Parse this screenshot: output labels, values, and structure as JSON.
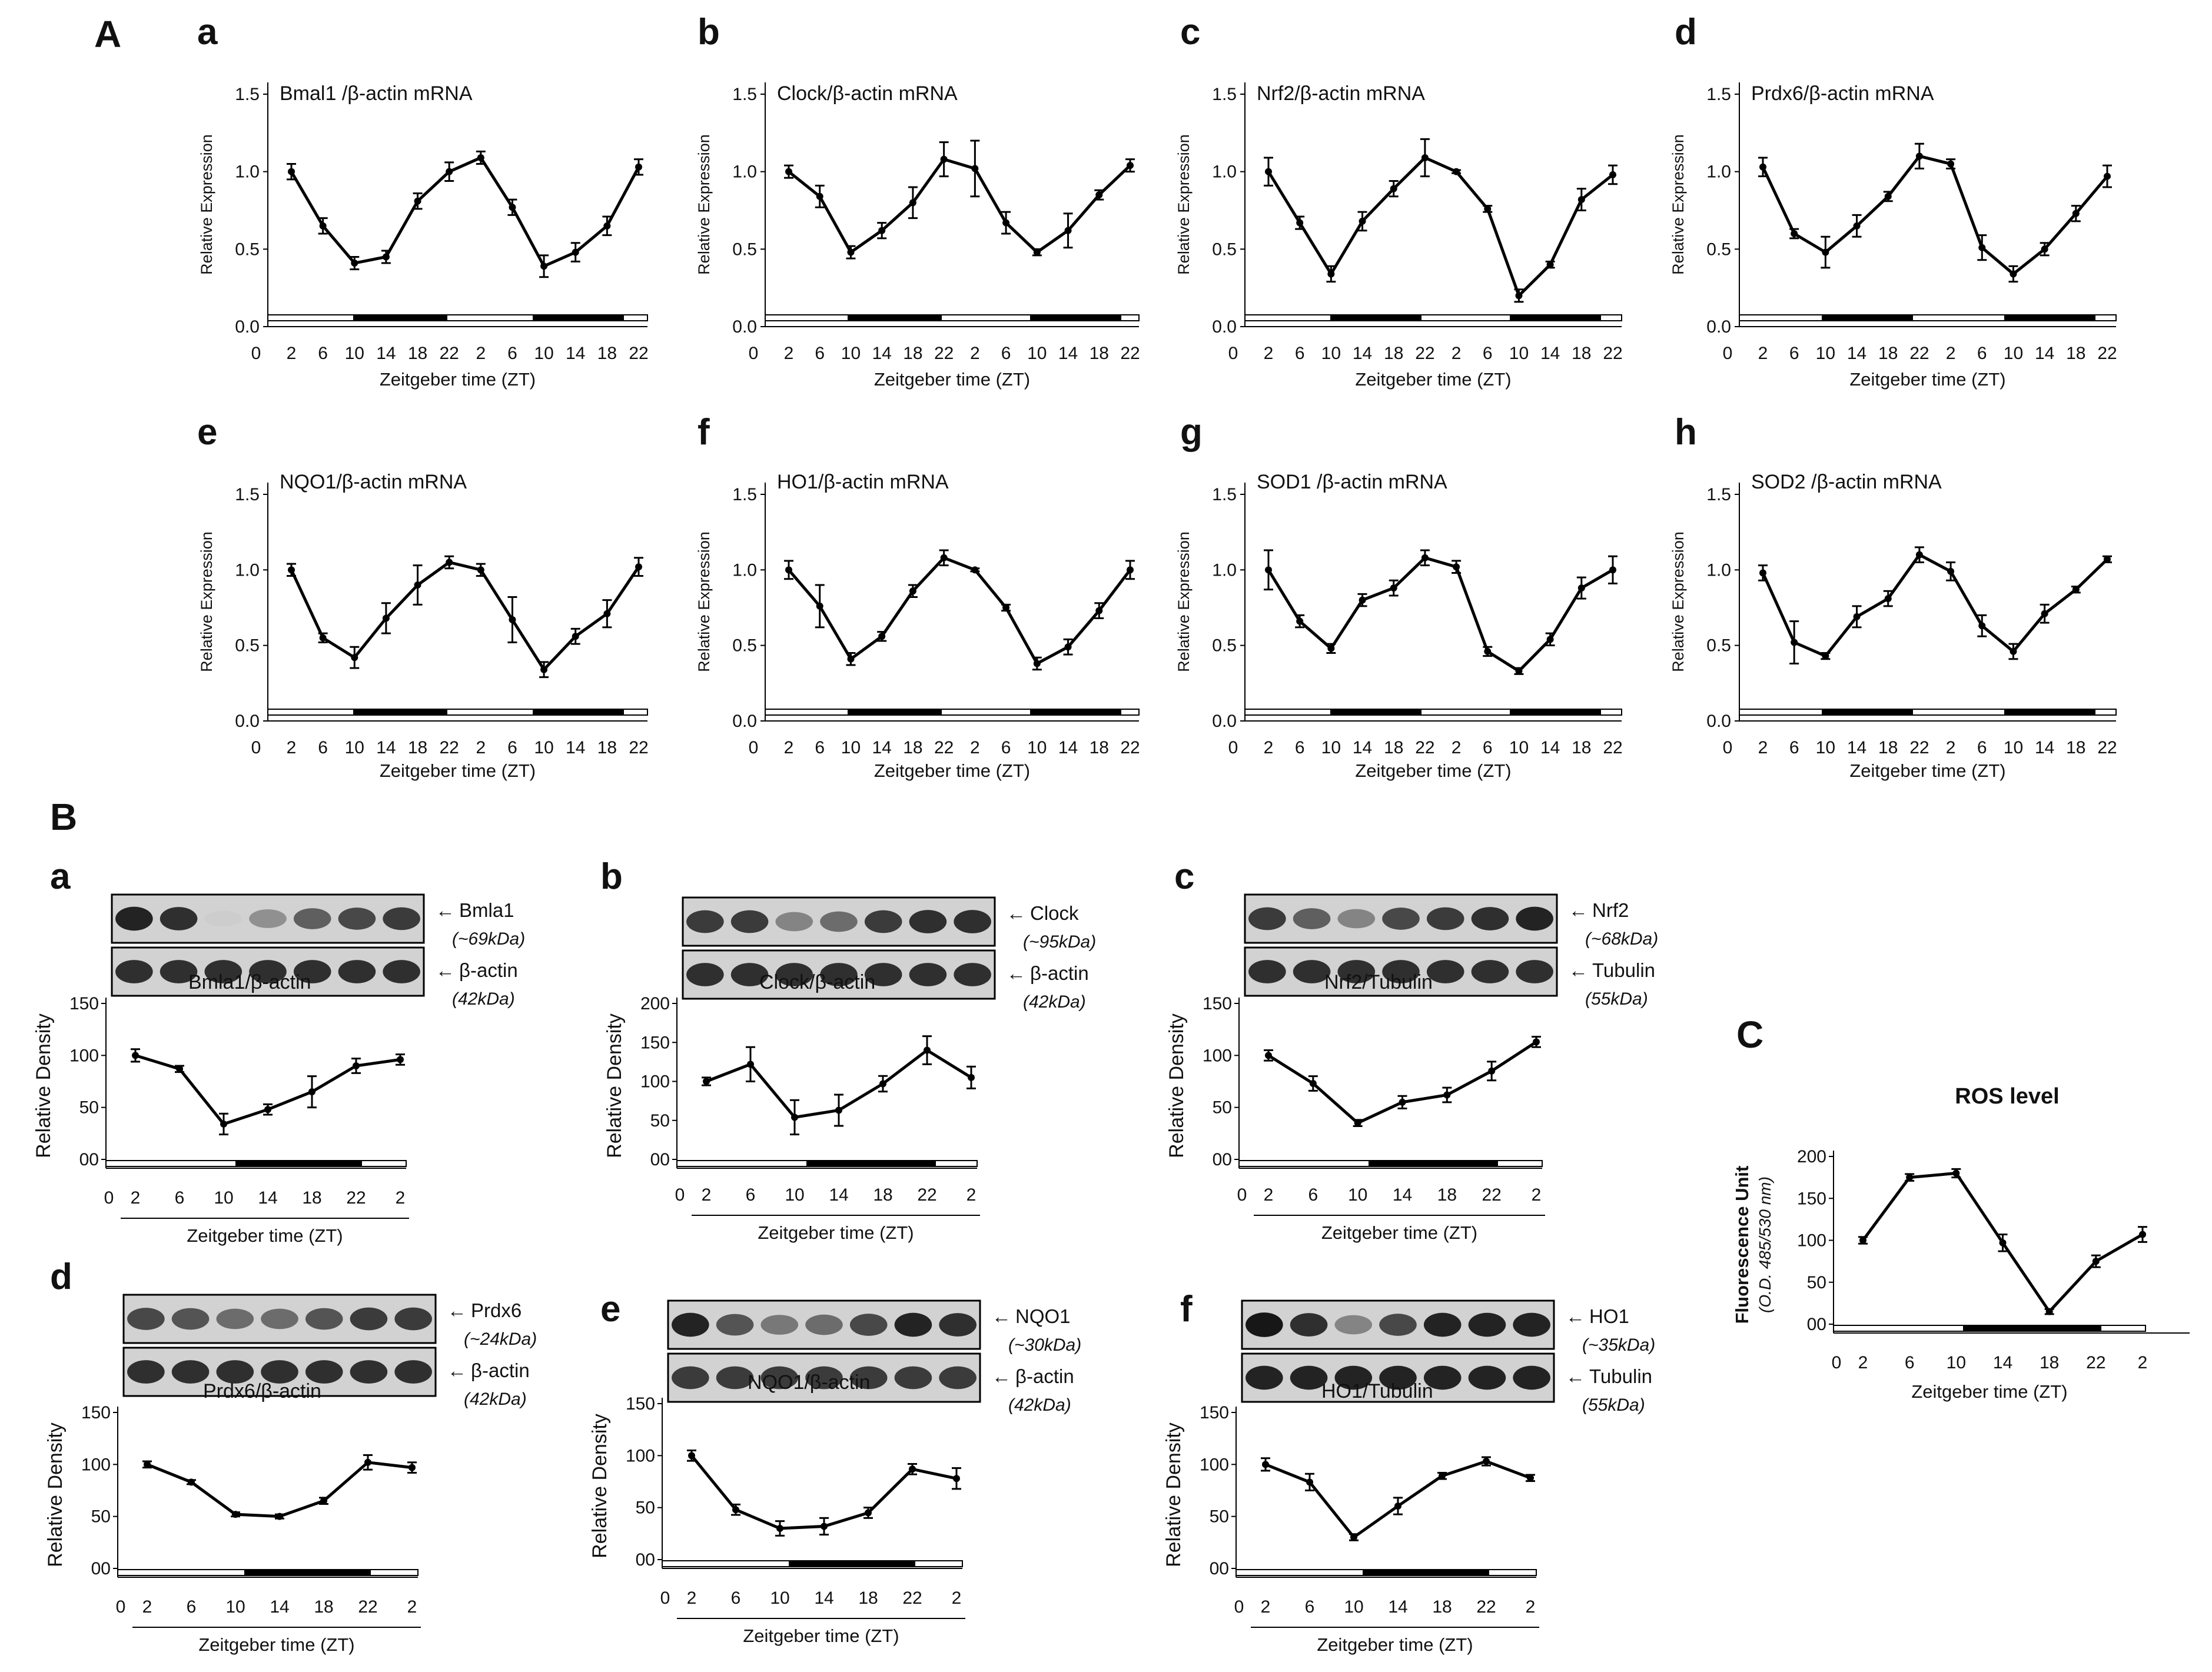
{
  "sections": [
    {
      "id": "A",
      "label": "A"
    },
    {
      "id": "B",
      "label": "B"
    },
    {
      "id": "C",
      "label": "C"
    }
  ],
  "chart_data": [
    {
      "id": "A-a",
      "panel": "a",
      "type": "line",
      "title": "Bmal1 /β-actin mRNA",
      "ylabel": "Relative  Expression",
      "xlabel": "Zeitgeber  time (ZT)",
      "x": [
        2,
        6,
        10,
        14,
        18,
        22,
        2,
        6,
        10,
        14,
        18,
        22
      ],
      "xticks": [
        "0",
        "2",
        "6",
        "10",
        "14",
        "18",
        "22",
        "2",
        "6",
        "10",
        "14",
        "18",
        "22"
      ],
      "yticks": [
        "0.0",
        "0.5",
        "1.0",
        "1.5"
      ],
      "ylim": [
        0,
        1.5
      ],
      "values": [
        1.0,
        0.65,
        0.41,
        0.45,
        0.81,
        1.0,
        1.09,
        0.77,
        0.39,
        0.48,
        0.65,
        1.03
      ],
      "errors": [
        0.05,
        0.05,
        0.04,
        0.04,
        0.05,
        0.06,
        0.04,
        0.05,
        0.07,
        0.06,
        0.06,
        0.05
      ],
      "light_dark": "white ZT0-10, black ZT10-22, white ZT22-10, black ZT10-22"
    },
    {
      "id": "A-b",
      "panel": "b",
      "type": "line",
      "title": "Clock/β-actin mRNA",
      "ylabel": "Relative  Expression",
      "xlabel": "Zeitgeber  time (ZT)",
      "x": [
        2,
        6,
        10,
        14,
        18,
        22,
        2,
        6,
        10,
        14,
        18,
        22
      ],
      "xticks": [
        "0",
        "2",
        "6",
        "10",
        "14",
        "18",
        "22",
        "2",
        "6",
        "10",
        "14",
        "18",
        "22"
      ],
      "yticks": [
        "0.0",
        "0.5",
        "1.0",
        "1.5"
      ],
      "ylim": [
        0,
        1.5
      ],
      "values": [
        1.0,
        0.84,
        0.48,
        0.62,
        0.8,
        1.08,
        1.02,
        0.67,
        0.48,
        0.62,
        0.85,
        1.04
      ],
      "errors": [
        0.04,
        0.07,
        0.04,
        0.05,
        0.1,
        0.11,
        0.18,
        0.07,
        0.02,
        0.11,
        0.03,
        0.04
      ],
      "light_dark": "white ZT0-10, black ZT10-22, white ZT22-10, black ZT10-22"
    },
    {
      "id": "A-c",
      "panel": "c",
      "type": "line",
      "title": "Nrf2/β-actin mRNA",
      "ylabel": "Relative  Expression",
      "xlabel": "Zeitgeber  time (ZT)",
      "x": [
        2,
        6,
        10,
        14,
        18,
        22,
        2,
        6,
        10,
        14,
        18,
        22
      ],
      "xticks": [
        "0",
        "2",
        "6",
        "10",
        "14",
        "18",
        "22",
        "2",
        "6",
        "10",
        "14",
        "18",
        "22"
      ],
      "yticks": [
        "0.0",
        "0.5",
        "1.0",
        "1.5"
      ],
      "ylim": [
        0,
        1.5
      ],
      "values": [
        1.0,
        0.67,
        0.34,
        0.68,
        0.89,
        1.09,
        1.0,
        0.76,
        0.2,
        0.4,
        0.82,
        0.98
      ],
      "errors": [
        0.09,
        0.04,
        0.05,
        0.06,
        0.05,
        0.12,
        0.01,
        0.02,
        0.04,
        0.02,
        0.07,
        0.06
      ],
      "light_dark": "white ZT0-10, black ZT10-22, white ZT22-10, black ZT10-22"
    },
    {
      "id": "A-d",
      "panel": "d",
      "type": "line",
      "title": "Prdx6/β-actin mRNA",
      "ylabel": "Relative  Expression",
      "xlabel": "Zeitgeber  time (ZT)",
      "x": [
        2,
        6,
        10,
        14,
        18,
        22,
        2,
        6,
        10,
        14,
        18,
        22
      ],
      "xticks": [
        "0",
        "2",
        "6",
        "10",
        "14",
        "18",
        "22",
        "2",
        "6",
        "10",
        "14",
        "18",
        "22"
      ],
      "yticks": [
        "0.0",
        "0.5",
        "1.0",
        "1.5"
      ],
      "ylim": [
        0,
        1.5
      ],
      "values": [
        1.03,
        0.6,
        0.48,
        0.65,
        0.84,
        1.1,
        1.05,
        0.51,
        0.34,
        0.5,
        0.73,
        0.97
      ],
      "errors": [
        0.06,
        0.03,
        0.1,
        0.07,
        0.03,
        0.08,
        0.03,
        0.08,
        0.05,
        0.04,
        0.05,
        0.07
      ],
      "light_dark": "white ZT0-10, black ZT10-22, white ZT22-10, black ZT10-22"
    },
    {
      "id": "A-e",
      "panel": "e",
      "type": "line",
      "title": "NQO1/β-actin mRNA",
      "ylabel": "Relative  Expression",
      "xlabel": "Zeitgeber  time (ZT)",
      "x": [
        2,
        6,
        10,
        14,
        18,
        22,
        2,
        6,
        10,
        14,
        18,
        22
      ],
      "xticks": [
        "0",
        "2",
        "6",
        "10",
        "14",
        "18",
        "22",
        "2",
        "6",
        "10",
        "14",
        "18",
        "22"
      ],
      "yticks": [
        "0.0",
        "0.5",
        "1.0",
        "1.5"
      ],
      "ylim": [
        0,
        1.5
      ],
      "values": [
        1.0,
        0.55,
        0.42,
        0.68,
        0.9,
        1.05,
        1.0,
        0.67,
        0.34,
        0.56,
        0.71,
        1.02
      ],
      "errors": [
        0.04,
        0.03,
        0.07,
        0.1,
        0.13,
        0.04,
        0.04,
        0.15,
        0.05,
        0.05,
        0.09,
        0.06
      ],
      "light_dark": "white ZT0-10, black ZT10-22, white ZT22-10, black ZT10-22"
    },
    {
      "id": "A-f",
      "panel": "f",
      "type": "line",
      "title": "HO1/β-actin mRNA",
      "ylabel": "Relative  Expression",
      "xlabel": "Zeitgeber  time (ZT)",
      "x": [
        2,
        6,
        10,
        14,
        18,
        22,
        2,
        6,
        10,
        14,
        18,
        22
      ],
      "xticks": [
        "0",
        "2",
        "6",
        "10",
        "14",
        "18",
        "22",
        "2",
        "6",
        "10",
        "14",
        "18",
        "22"
      ],
      "yticks": [
        "0.0",
        "0.5",
        "1.0",
        "1.5"
      ],
      "ylim": [
        0,
        1.5
      ],
      "values": [
        1.0,
        0.76,
        0.41,
        0.56,
        0.86,
        1.08,
        1.0,
        0.75,
        0.38,
        0.49,
        0.73,
        1.0
      ],
      "errors": [
        0.06,
        0.14,
        0.04,
        0.03,
        0.04,
        0.05,
        0.01,
        0.02,
        0.04,
        0.05,
        0.05,
        0.06
      ],
      "light_dark": "white ZT0-10, black ZT10-22, white ZT22-10, black ZT10-22"
    },
    {
      "id": "A-g",
      "panel": "g",
      "type": "line",
      "title": "SOD1 /β-actin mRNA",
      "ylabel": "Relative  Expression",
      "xlabel": "Zeitgeber  time (ZT)",
      "x": [
        2,
        6,
        10,
        14,
        18,
        22,
        2,
        6,
        10,
        14,
        18,
        22
      ],
      "xticks": [
        "0",
        "2",
        "6",
        "10",
        "14",
        "18",
        "22",
        "2",
        "6",
        "10",
        "14",
        "18",
        "22"
      ],
      "yticks": [
        "0.0",
        "0.5",
        "1.0",
        "1.5"
      ],
      "ylim": [
        0,
        1.5
      ],
      "values": [
        1.0,
        0.66,
        0.48,
        0.8,
        0.88,
        1.08,
        1.02,
        0.46,
        0.33,
        0.54,
        0.88,
        1.0
      ],
      "errors": [
        0.13,
        0.04,
        0.03,
        0.04,
        0.05,
        0.05,
        0.04,
        0.03,
        0.02,
        0.04,
        0.07,
        0.09
      ],
      "light_dark": "white ZT0-10, black ZT10-22, white ZT22-10, black ZT10-22"
    },
    {
      "id": "A-h",
      "panel": "h",
      "type": "line",
      "title": "SOD2 /β-actin mRNA",
      "ylabel": "Relative  Expression",
      "xlabel": "Zeitgeber  time (ZT)",
      "x": [
        2,
        6,
        10,
        14,
        18,
        22,
        2,
        6,
        10,
        14,
        18,
        22
      ],
      "xticks": [
        "0",
        "2",
        "6",
        "10",
        "14",
        "18",
        "22",
        "2",
        "6",
        "10",
        "14",
        "18",
        "22"
      ],
      "yticks": [
        "0.0",
        "0.5",
        "1.0",
        "1.5"
      ],
      "ylim": [
        0,
        1.5
      ],
      "values": [
        0.98,
        0.52,
        0.43,
        0.69,
        0.81,
        1.1,
        0.99,
        0.63,
        0.46,
        0.71,
        0.87,
        1.07
      ],
      "errors": [
        0.05,
        0.14,
        0.02,
        0.07,
        0.05,
        0.05,
        0.06,
        0.07,
        0.05,
        0.06,
        0.02,
        0.02
      ],
      "light_dark": "white ZT0-10, black ZT10-22, white ZT22-10, black ZT10-22"
    },
    {
      "id": "B-a",
      "panel": "a",
      "type": "line",
      "title": "Bmla1/β-actin",
      "ylabel": "Relative Density",
      "xlabel": "Zeitgeber  time (ZT)",
      "x": [
        2,
        6,
        10,
        14,
        18,
        22,
        2
      ],
      "xticks": [
        "0",
        "2",
        "6",
        "10",
        "14",
        "18",
        "22",
        "2"
      ],
      "yticks": [
        "00",
        "50",
        "100",
        "150"
      ],
      "ylim": [
        0,
        150
      ],
      "values": [
        100,
        87,
        34,
        48,
        65,
        90,
        96
      ],
      "errors": [
        6,
        3,
        10,
        5,
        15,
        7,
        5
      ],
      "blot": {
        "target": "Bmla1",
        "target_kda": "(~69kDa)",
        "control": "β-actin",
        "control_kda": "(42kDa)",
        "target_intensity": [
          0.9,
          0.85,
          0.2,
          0.45,
          0.65,
          0.75,
          0.8
        ],
        "control_intensity": [
          0.85,
          0.85,
          0.85,
          0.85,
          0.85,
          0.85,
          0.85
        ]
      }
    },
    {
      "id": "B-b",
      "panel": "b",
      "type": "line",
      "title": "Clock/β-actin",
      "ylabel": "Relative Density",
      "xlabel": "Zeitgeber  time (ZT)",
      "x": [
        2,
        6,
        10,
        14,
        18,
        22,
        2
      ],
      "xticks": [
        "0",
        "2",
        "6",
        "10",
        "14",
        "18",
        "22",
        "2"
      ],
      "yticks": [
        "00",
        "50",
        "100",
        "150",
        "200"
      ],
      "ylim": [
        0,
        200
      ],
      "values": [
        100,
        122,
        54,
        63,
        97,
        140,
        105
      ],
      "errors": [
        5,
        22,
        22,
        20,
        10,
        18,
        14
      ],
      "blot": {
        "target": "Clock",
        "target_kda": "(~95kDa)",
        "control": "β-actin",
        "control_kda": "(42kDa)",
        "target_intensity": [
          0.8,
          0.8,
          0.5,
          0.6,
          0.8,
          0.85,
          0.85
        ],
        "control_intensity": [
          0.85,
          0.85,
          0.85,
          0.85,
          0.85,
          0.85,
          0.85
        ]
      }
    },
    {
      "id": "B-c",
      "panel": "c",
      "type": "line",
      "title": "Nrf2/Tubulin",
      "ylabel": "Relative Density",
      "xlabel": "Zeitgeber  time (ZT)",
      "x": [
        2,
        6,
        10,
        14,
        18,
        22,
        2
      ],
      "xticks": [
        "0",
        "2",
        "6",
        "10",
        "14",
        "18",
        "22",
        "2"
      ],
      "yticks": [
        "00",
        "50",
        "100",
        "150"
      ],
      "ylim": [
        0,
        150
      ],
      "values": [
        100,
        73,
        35,
        55,
        62,
        85,
        113
      ],
      "errors": [
        5,
        7,
        3,
        6,
        7,
        9,
        5
      ],
      "blot": {
        "target": "Nrf2",
        "target_kda": "(~68kDa)",
        "control": "Tubulin",
        "control_kda": "(55kDa)",
        "target_intensity": [
          0.8,
          0.65,
          0.5,
          0.75,
          0.8,
          0.85,
          0.9
        ],
        "control_intensity": [
          0.85,
          0.85,
          0.85,
          0.85,
          0.85,
          0.85,
          0.85
        ]
      }
    },
    {
      "id": "B-d",
      "panel": "d",
      "type": "line",
      "title": "Prdx6/β-actin",
      "ylabel": "Relative Density",
      "xlabel": "Zeitgeber  time (ZT)",
      "x": [
        2,
        6,
        10,
        14,
        18,
        22,
        2
      ],
      "xticks": [
        "0",
        "2",
        "6",
        "10",
        "14",
        "18",
        "22",
        "2"
      ],
      "yticks": [
        "00",
        "50",
        "100",
        "150"
      ],
      "ylim": [
        0,
        150
      ],
      "values": [
        100,
        83,
        52,
        50,
        65,
        102,
        97
      ],
      "errors": [
        3,
        2,
        2,
        2,
        3,
        7,
        5
      ],
      "blot": {
        "target": "Prdx6",
        "target_kda": "(~24kDa)",
        "control": "β-actin",
        "control_kda": "(42kDa)",
        "target_intensity": [
          0.75,
          0.7,
          0.6,
          0.6,
          0.7,
          0.8,
          0.8
        ],
        "control_intensity": [
          0.85,
          0.85,
          0.85,
          0.85,
          0.85,
          0.85,
          0.85
        ]
      }
    },
    {
      "id": "B-e",
      "panel": "e",
      "type": "line",
      "title": "NQO1/β-actin",
      "ylabel": "Relative Density",
      "xlabel": "Zeitgeber  time (ZT)",
      "x": [
        2,
        6,
        10,
        14,
        18,
        22,
        2
      ],
      "xticks": [
        "0",
        "2",
        "6",
        "10",
        "14",
        "18",
        "22",
        "2"
      ],
      "yticks": [
        "00",
        "50",
        "100",
        "150"
      ],
      "ylim": [
        0,
        150
      ],
      "values": [
        100,
        48,
        30,
        32,
        45,
        87,
        78
      ],
      "errors": [
        5,
        5,
        7,
        8,
        5,
        5,
        10
      ],
      "blot": {
        "target": "NQO1",
        "target_kda": "(~30kDa)",
        "control": "β-actin",
        "control_kda": "(42kDa)",
        "target_intensity": [
          0.9,
          0.7,
          0.55,
          0.6,
          0.75,
          0.9,
          0.85
        ],
        "control_intensity": [
          0.8,
          0.8,
          0.8,
          0.8,
          0.8,
          0.8,
          0.8
        ]
      }
    },
    {
      "id": "B-f",
      "panel": "f",
      "type": "line",
      "title": "HO1/Tubulin",
      "ylabel": "Relative Density",
      "xlabel": "Zeitgeber  time (ZT)",
      "x": [
        2,
        6,
        10,
        14,
        18,
        22,
        2
      ],
      "xticks": [
        "0",
        "2",
        "6",
        "10",
        "14",
        "18",
        "22",
        "2"
      ],
      "yticks": [
        "00",
        "50",
        "100",
        "150"
      ],
      "ylim": [
        0,
        150
      ],
      "values": [
        100,
        83,
        30,
        60,
        89,
        103,
        87
      ],
      "errors": [
        6,
        8,
        3,
        8,
        3,
        4,
        3
      ],
      "blot": {
        "target": "HO1",
        "target_kda": "(~35kDa)",
        "control": "Tubulin",
        "control_kda": "(55kDa)",
        "target_intensity": [
          0.95,
          0.85,
          0.5,
          0.75,
          0.9,
          0.9,
          0.9
        ],
        "control_intensity": [
          0.9,
          0.9,
          0.9,
          0.9,
          0.9,
          0.9,
          0.9
        ]
      }
    },
    {
      "id": "C",
      "panel": "",
      "type": "line",
      "title": "ROS level",
      "ylabel": "Fluorescence Unit",
      "ylabel2": "(O.D. 485/530 nm)",
      "xlabel": "Zeitgeber  time (ZT)",
      "x": [
        2,
        6,
        10,
        14,
        18,
        22,
        2
      ],
      "xticks": [
        "0",
        "2",
        "6",
        "10",
        "14",
        "18",
        "22",
        "2"
      ],
      "yticks": [
        "00",
        "50",
        "100",
        "150",
        "200"
      ],
      "ylim": [
        0,
        200
      ],
      "values": [
        100,
        175,
        180,
        97,
        15,
        75,
        107
      ],
      "errors": [
        4,
        4,
        5,
        10,
        3,
        7,
        9
      ]
    }
  ]
}
